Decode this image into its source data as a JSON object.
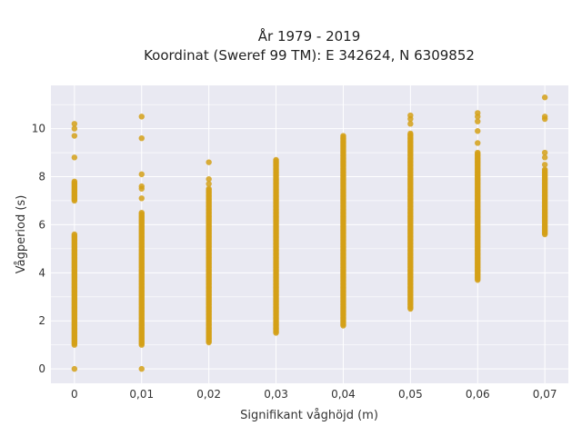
{
  "chart_data": {
    "type": "scatter",
    "title": "År 1979 - 2019",
    "subtitle": "Koordinat (Sweref 99 TM): E 342624, N 6309852",
    "xlabel": "Signifikant våghöjd (m)",
    "ylabel": "Vågperiod (s)",
    "x_ticks": [
      "0",
      "0,01",
      "0,02",
      "0,03",
      "0,04",
      "0,05",
      "0,06",
      "0,07"
    ],
    "y_ticks": [
      "0",
      "2",
      "4",
      "6",
      "8",
      "10"
    ],
    "xlim": [
      -0.0035,
      0.0735
    ],
    "ylim": [
      -0.6,
      11.8
    ],
    "grid": true,
    "legend": "none",
    "colors": {
      "marker": "#D4A017",
      "plot_bg": "#E9E9F2",
      "grid": "#FFFFFF"
    },
    "columns": [
      {
        "x": 0.0,
        "ranges": [
          [
            1.0,
            5.6
          ],
          [
            7.0,
            7.8
          ]
        ],
        "points": [
          0.0,
          8.8,
          9.7,
          10.0,
          10.2
        ]
      },
      {
        "x": 0.01,
        "ranges": [
          [
            1.0,
            6.5
          ]
        ],
        "points": [
          0.0,
          7.1,
          7.5,
          7.6,
          8.1,
          9.6,
          10.5
        ]
      },
      {
        "x": 0.02,
        "ranges": [
          [
            1.1,
            7.5
          ]
        ],
        "points": [
          7.7,
          7.9,
          8.6
        ]
      },
      {
        "x": 0.03,
        "ranges": [
          [
            1.5,
            8.7
          ]
        ],
        "points": []
      },
      {
        "x": 0.04,
        "ranges": [
          [
            1.8,
            9.7
          ]
        ],
        "points": []
      },
      {
        "x": 0.05,
        "ranges": [
          [
            2.5,
            9.8
          ]
        ],
        "points": [
          10.2,
          10.4,
          10.55
        ]
      },
      {
        "x": 0.06,
        "ranges": [
          [
            3.7,
            9.0
          ]
        ],
        "points": [
          9.4,
          9.9,
          10.3,
          10.5,
          10.65
        ]
      },
      {
        "x": 0.07,
        "ranges": [
          [
            5.6,
            8.3
          ]
        ],
        "points": [
          8.5,
          8.8,
          9.0,
          10.4,
          10.5,
          11.3
        ]
      }
    ]
  }
}
